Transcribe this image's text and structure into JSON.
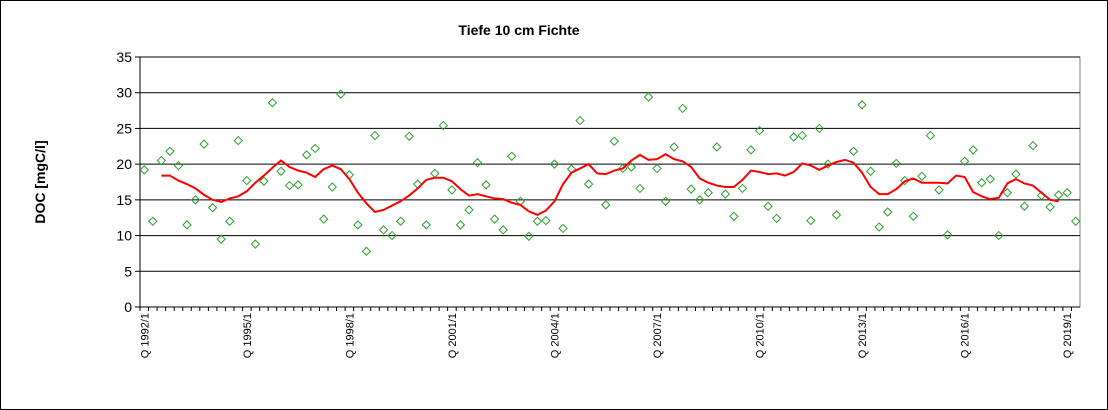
{
  "chart_data": {
    "type": "combo",
    "title": "Tiefe  10 cm     Fichte",
    "y_label": "DOC [mgC/l]",
    "categories": [
      "Q 1992/1",
      null,
      null,
      null,
      null,
      null,
      null,
      null,
      null,
      null,
      null,
      null,
      "Q 1995/1",
      null,
      null,
      null,
      null,
      null,
      null,
      null,
      null,
      null,
      null,
      null,
      "Q 1998/1",
      null,
      null,
      null,
      null,
      null,
      null,
      null,
      null,
      null,
      null,
      null,
      "Q 2001/1",
      null,
      null,
      null,
      null,
      null,
      null,
      null,
      null,
      null,
      null,
      null,
      "Q 2004/1",
      null,
      null,
      null,
      null,
      null,
      null,
      null,
      null,
      null,
      null,
      null,
      "Q 2007/1",
      null,
      null,
      null,
      null,
      null,
      null,
      null,
      null,
      null,
      null,
      null,
      "Q 2010/1",
      null,
      null,
      null,
      null,
      null,
      null,
      null,
      null,
      null,
      null,
      null,
      "Q 2013/1",
      null,
      null,
      null,
      null,
      null,
      null,
      null,
      null,
      null,
      null,
      null,
      "Q 2016/1",
      null,
      null,
      null,
      null,
      null,
      null,
      null,
      null,
      null,
      null,
      null,
      "Q 2019/1",
      null
    ],
    "series": [
      {
        "type": "scatter",
        "color": "#2ca02c",
        "values": [
          19.2,
          12,
          20.5,
          21.8,
          19.8,
          11.5,
          15,
          22.8,
          13.9,
          9.5,
          12,
          23.3,
          17.7,
          8.8,
          17.6,
          28.6,
          19,
          17,
          17.1,
          21.3,
          22.2,
          12.3,
          16.8,
          29.8,
          18.5,
          11.5,
          7.8,
          24,
          10.8,
          10,
          12,
          23.9,
          17.2,
          11.5,
          18.7,
          25.4,
          16.4,
          11.5,
          13.6,
          20.2,
          17.1,
          12.3,
          10.8,
          21.1,
          14.8,
          9.9,
          12,
          12.1,
          20,
          11,
          19.3,
          26.1,
          17.2,
          null,
          14.3,
          23.2,
          19.4,
          19.6,
          16.6,
          29.4,
          19.4,
          14.8,
          22.4,
          27.8,
          16.5,
          15,
          16,
          22.4,
          15.8,
          12.7,
          16.6,
          22,
          24.7,
          14.1,
          12.4,
          null,
          23.8,
          24,
          12.1,
          25,
          20,
          12.9,
          null,
          21.8,
          28.3,
          19,
          11.2,
          13.3,
          20.1,
          17.7,
          12.7,
          18.3,
          24,
          16.4,
          10.1,
          null,
          20.4,
          22,
          17.4,
          17.9,
          10,
          16,
          18.6,
          14.1,
          22.6,
          15.6,
          14,
          15.7,
          16,
          12
        ]
      },
      {
        "type": "line",
        "color": "#ff0000",
        "values": [
          null,
          null,
          18.4,
          18.4,
          17.7,
          17.2,
          16.6,
          15.7,
          15,
          14.7,
          15.2,
          15.5,
          16.2,
          17.4,
          18.4,
          19.5,
          20.5,
          19.6,
          19.1,
          18.8,
          18.2,
          19.3,
          19.8,
          19.3,
          17.9,
          16,
          14.5,
          13.3,
          13.6,
          14.2,
          14.8,
          15.6,
          16.6,
          17.8,
          18.1,
          18.1,
          17.6,
          16.5,
          15.6,
          15.8,
          15.5,
          15.2,
          15.1,
          14.6,
          14.3,
          13.4,
          12.9,
          13.5,
          14.8,
          17.2,
          18.8,
          19.4,
          20,
          18.7,
          18.6,
          19.1,
          19.4,
          20.5,
          21.3,
          20.6,
          20.7,
          21.4,
          20.7,
          20.4,
          19.6,
          18,
          17.4,
          17,
          16.8,
          16.8,
          17.8,
          19.1,
          18.9,
          18.6,
          18.7,
          18.4,
          18.9,
          20.1,
          19.8,
          19.2,
          19.8,
          20.3,
          20.6,
          20.2,
          18.8,
          16.8,
          15.8,
          15.8,
          16.5,
          17.6,
          18,
          17.4,
          17.4,
          17.4,
          17.3,
          18.4,
          18.2,
          16.1,
          15.5,
          15.1,
          15.3,
          17.3,
          17.9,
          17.3,
          17,
          16,
          15,
          14.8,
          null,
          null
        ]
      }
    ],
    "ylim": [
      0,
      35
    ],
    "yticks": [
      0,
      5,
      10,
      15,
      20,
      25,
      30,
      35
    ],
    "grid": true
  }
}
